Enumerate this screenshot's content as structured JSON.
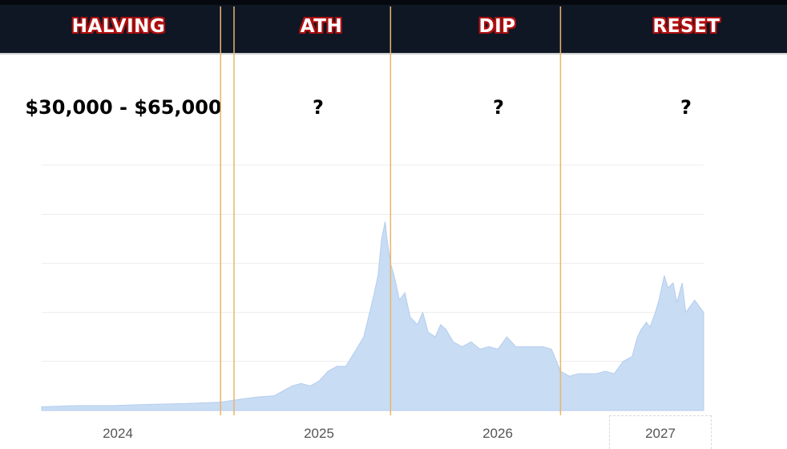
{
  "phases": [
    "HALVING",
    "ATH",
    "DIP",
    "RESET"
  ],
  "prices": [
    "$30,000 - $65,000",
    "?",
    "?",
    "?"
  ],
  "colors": {
    "header_bg": "#0f1725",
    "phase_text": "#ffffff",
    "phase_outline": "#b01010",
    "area_fill": "#c8dcf4",
    "area_line": "#b4cdee",
    "divider": "#e8b56a",
    "gridline": "#ececec"
  },
  "chart_data": {
    "type": "area",
    "title": "",
    "xlabel": "",
    "ylabel": "",
    "x_tick_labels": [
      "2024",
      "2025",
      "2026",
      "2027"
    ],
    "xlim": [
      2023.6,
      2027.3
    ],
    "ylim": [
      0,
      100
    ],
    "grid": "horizontal",
    "phase_boundaries": [
      2024.6,
      2025.55,
      2026.5
    ],
    "series": [
      {
        "name": "price",
        "x": [
          2023.6,
          2023.8,
          2024.0,
          2024.2,
          2024.4,
          2024.6,
          2024.7,
          2024.8,
          2024.9,
          2025.0,
          2025.05,
          2025.1,
          2025.15,
          2025.2,
          2025.25,
          2025.3,
          2025.35,
          2025.4,
          2025.45,
          2025.48,
          2025.5,
          2025.52,
          2025.53,
          2025.55,
          2025.57,
          2025.6,
          2025.63,
          2025.66,
          2025.7,
          2025.73,
          2025.76,
          2025.8,
          2025.83,
          2025.86,
          2025.9,
          2025.95,
          2026.0,
          2026.05,
          2026.1,
          2026.15,
          2026.2,
          2026.25,
          2026.3,
          2026.35,
          2026.4,
          2026.45,
          2026.5,
          2026.55,
          2026.6,
          2026.7,
          2026.75,
          2026.8,
          2026.85,
          2026.9,
          2026.93,
          2026.95,
          2026.98,
          2027.0,
          2027.03,
          2027.05,
          2027.08,
          2027.1,
          2027.13,
          2027.15,
          2027.18,
          2027.2,
          2027.25,
          2027.3
        ],
        "values": [
          1.5,
          2,
          2,
          2.5,
          2.8,
          3.4,
          4.5,
          5.5,
          6,
          10,
          11,
          10,
          12,
          16,
          18,
          18,
          24,
          30,
          45,
          55,
          70,
          77,
          70,
          60,
          55,
          45,
          48,
          38,
          35,
          40,
          32,
          30,
          35,
          33,
          28,
          26,
          28,
          25,
          26,
          25,
          30,
          26,
          26,
          26,
          26,
          25,
          16,
          14,
          15,
          15,
          16,
          15,
          20,
          22,
          30,
          33,
          36,
          34,
          40,
          45,
          55,
          50,
          52,
          44,
          52,
          40,
          45,
          40
        ]
      }
    ]
  }
}
